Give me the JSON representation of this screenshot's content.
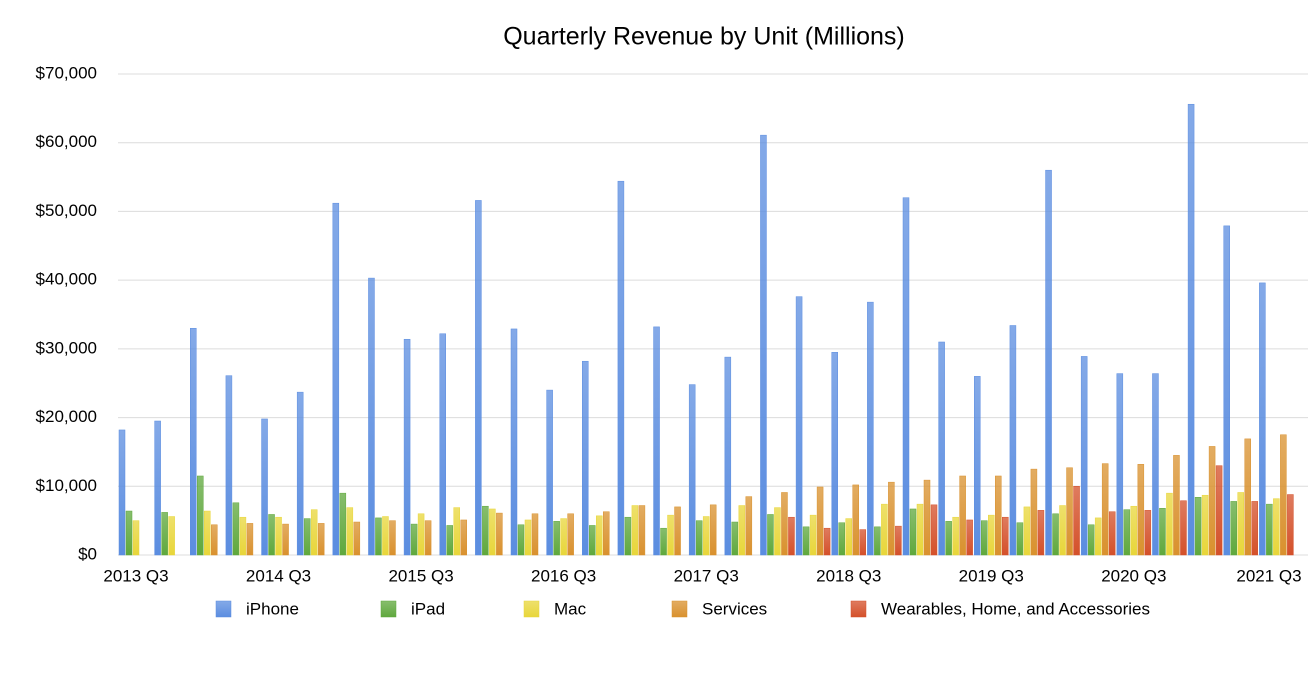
{
  "chart_data": {
    "type": "bar",
    "title": "Quarterly Revenue by Unit (Millions)",
    "categories": [
      "2013 Q3",
      null,
      null,
      null,
      "2014 Q3",
      null,
      null,
      null,
      "2015 Q3",
      null,
      null,
      null,
      "2016 Q3",
      null,
      null,
      null,
      "2017 Q3",
      null,
      null,
      null,
      "2018 Q3",
      null,
      null,
      null,
      "2019 Q3",
      null,
      null,
      null,
      "2020 Q3",
      null,
      null,
      null,
      "2021 Q3"
    ],
    "series": [
      {
        "name": "iPhone",
        "color": "#5b8de0",
        "values": [
          18200,
          19500,
          33000,
          26100,
          19800,
          23700,
          51200,
          40300,
          31400,
          32200,
          51600,
          32900,
          24000,
          28200,
          54400,
          33200,
          24800,
          28800,
          61100,
          37600,
          29500,
          36800,
          52000,
          31000,
          26000,
          33400,
          56000,
          28900,
          26400,
          26400,
          65600,
          47900,
          39600
        ]
      },
      {
        "name": "iPad",
        "color": "#5fa83d",
        "values": [
          6400,
          6200,
          11500,
          7600,
          5900,
          5300,
          9000,
          5400,
          4500,
          4300,
          7100,
          4400,
          4900,
          4300,
          5500,
          3900,
          5000,
          4800,
          5900,
          4100,
          4700,
          4100,
          6700,
          4900,
          5000,
          4700,
          6000,
          4400,
          6600,
          6800,
          8400,
          7800,
          7400
        ]
      },
      {
        "name": "Mac",
        "color": "#e8d63a",
        "values": [
          5000,
          5600,
          6400,
          5500,
          5500,
          6600,
          6900,
          5600,
          6000,
          6900,
          6700,
          5100,
          5300,
          5700,
          7200,
          5800,
          5600,
          7200,
          6900,
          5800,
          5300,
          7400,
          7400,
          5500,
          5800,
          7000,
          7200,
          5400,
          7100,
          9000,
          8700,
          9100,
          8200
        ]
      },
      {
        "name": "Services",
        "color": "#d9912e",
        "values": [
          null,
          null,
          4400,
          4600,
          4500,
          4600,
          4800,
          5000,
          5000,
          5100,
          6100,
          6000,
          6000,
          6300,
          7200,
          7000,
          7300,
          8500,
          9100,
          9900,
          10200,
          10600,
          10900,
          11500,
          11500,
          12500,
          12700,
          13300,
          13200,
          14500,
          15800,
          16900,
          17500
        ]
      },
      {
        "name": "Wearables, Home, and Accessories",
        "color": "#d4502a",
        "values": [
          null,
          null,
          null,
          null,
          null,
          null,
          null,
          null,
          null,
          null,
          null,
          null,
          null,
          null,
          null,
          null,
          null,
          null,
          5500,
          3900,
          3700,
          4200,
          7300,
          5100,
          5500,
          6500,
          10000,
          6300,
          6500,
          7900,
          13000,
          7800,
          8800
        ]
      }
    ],
    "ylim": [
      0,
      70000
    ],
    "yticks": [
      {
        "value": 0,
        "label": "$0"
      },
      {
        "value": 10000,
        "label": "$10,000"
      },
      {
        "value": 20000,
        "label": "$20,000"
      },
      {
        "value": 30000,
        "label": "$30,000"
      },
      {
        "value": 40000,
        "label": "$40,000"
      },
      {
        "value": 50000,
        "label": "$50,000"
      },
      {
        "value": 60000,
        "label": "$60,000"
      },
      {
        "value": 70000,
        "label": "$70,000"
      }
    ],
    "grid": true
  }
}
